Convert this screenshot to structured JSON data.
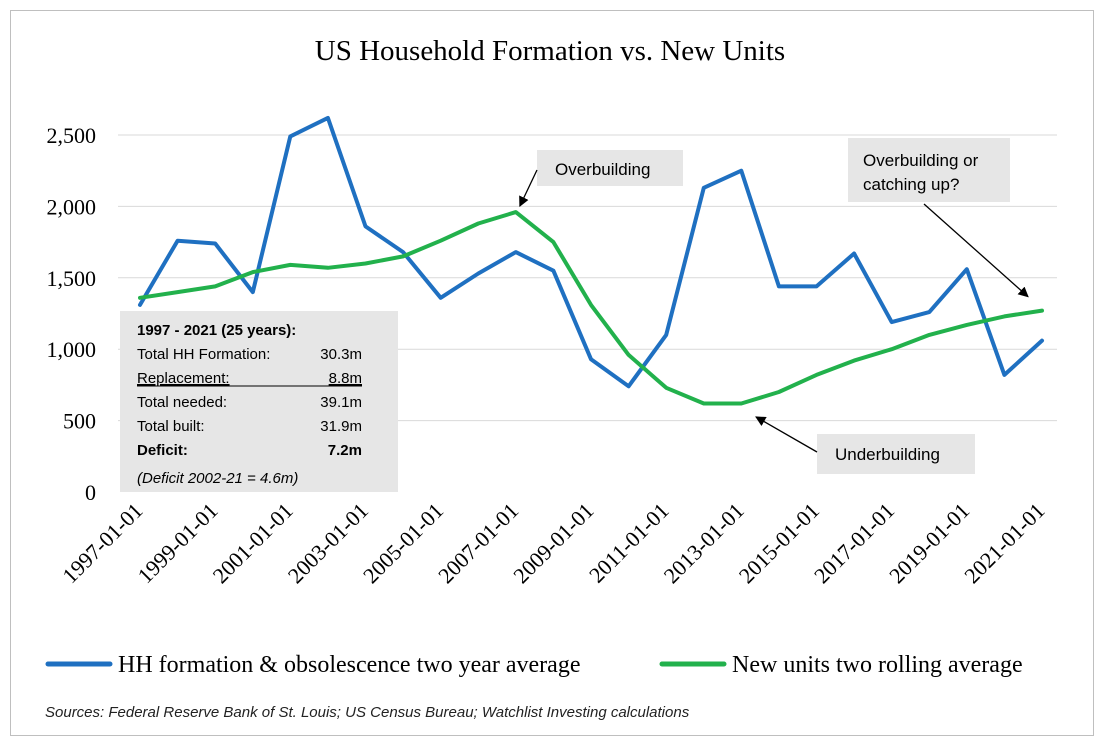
{
  "chart_data": {
    "type": "line",
    "title": "US Household Formation vs. New Units",
    "x": [
      "1997-01-01",
      "1998-01-01",
      "1999-01-01",
      "2000-01-01",
      "2001-01-01",
      "2002-01-01",
      "2003-01-01",
      "2004-01-01",
      "2005-01-01",
      "2006-01-01",
      "2007-01-01",
      "2008-01-01",
      "2009-01-01",
      "2010-01-01",
      "2011-01-01",
      "2012-01-01",
      "2013-01-01",
      "2014-01-01",
      "2015-01-01",
      "2016-01-01",
      "2017-01-01",
      "2018-01-01",
      "2019-01-01",
      "2020-01-01",
      "2021-01-01"
    ],
    "x_tick_labels": [
      "1997-01-01",
      "1999-01-01",
      "2001-01-01",
      "2003-01-01",
      "2005-01-01",
      "2007-01-01",
      "2009-01-01",
      "2011-01-01",
      "2013-01-01",
      "2015-01-01",
      "2017-01-01",
      "2019-01-01",
      "2021-01-01"
    ],
    "y_tick_labels": [
      "0",
      "500",
      "1,000",
      "1,500",
      "2,000",
      "2,500"
    ],
    "ylim": [
      0,
      2500
    ],
    "y_ticks": [
      0,
      500,
      1000,
      1500,
      2000,
      2500
    ],
    "grid": true,
    "legend_position": "bottom",
    "series": [
      {
        "name": "HH formation & obsolescence two year average",
        "color": "#1f70c1",
        "values": [
          1310,
          1760,
          1740,
          1400,
          2490,
          2620,
          1860,
          1680,
          1360,
          1530,
          1680,
          1550,
          930,
          740,
          1100,
          2130,
          2250,
          1440,
          1440,
          1670,
          1190,
          1260,
          1560,
          820,
          1060
        ]
      },
      {
        "name": "New units two rolling average",
        "color": "#22b14c",
        "values": [
          1360,
          1400,
          1440,
          1540,
          1590,
          1570,
          1600,
          1650,
          1760,
          1880,
          1960,
          1750,
          1310,
          960,
          730,
          620,
          620,
          700,
          820,
          920,
          1000,
          1100,
          1170,
          1230,
          1270
        ]
      }
    ],
    "annotations": [
      {
        "id": "overbuilding",
        "text": "Overbuilding",
        "x": "2007-01-01",
        "y": 1960
      },
      {
        "id": "underbuilding",
        "text": "Underbuilding",
        "x": "2013-01-01",
        "y": 610
      },
      {
        "id": "catching-up",
        "lines": [
          "Overbuilding or",
          "catching up?"
        ],
        "x": "2021-01-01",
        "y": 1270
      }
    ],
    "summary_box": {
      "header": "1997 - 2021 (25 years):",
      "rows": [
        {
          "label": "Total HH Formation:",
          "value": "30.3m",
          "underline": false,
          "bold": false
        },
        {
          "label": "Replacement:",
          "value": "8.8m",
          "underline": true,
          "bold": false
        },
        {
          "label": "Total needed:",
          "value": "39.1m",
          "underline": false,
          "bold": false
        },
        {
          "label": "Total built:",
          "value": "31.9m",
          "underline": false,
          "bold": false
        },
        {
          "label": "Deficit:",
          "value": "7.2m",
          "underline": false,
          "bold": true
        }
      ],
      "footnote": "(Deficit 2002-21 = 4.6m)"
    }
  },
  "source_note": "Sources: Federal Reserve Bank of St. Louis; US Census Bureau; Watchlist Investing calculations"
}
